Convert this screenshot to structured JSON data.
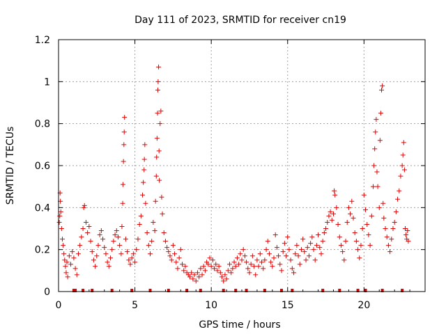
{
  "chart_data": {
    "type": "scatter",
    "title": "Day 111 of 2023, SRMTID for receiver cn19",
    "xlabel": "GPS time / hours",
    "ylabel": "SRMTID / TECUs",
    "xlim": [
      0,
      24
    ],
    "ylim": [
      0,
      1.2
    ],
    "grid": true,
    "marker": "+",
    "color": "#e00000",
    "x_ticks": [
      0,
      5,
      10,
      15,
      20
    ],
    "x_tick_labels": [
      "0",
      "5",
      "10",
      "15",
      "20"
    ],
    "y_ticks": [
      0,
      0.2,
      0.4,
      0.6,
      0.8,
      1.0,
      1.2
    ],
    "y_tick_labels": [
      "0",
      "0.2",
      "0.4",
      "0.6",
      "0.8",
      "1",
      "1.2"
    ],
    "series": [
      {
        "name": "SRMTID",
        "points": [
          [
            0.05,
            0.33
          ],
          [
            0.08,
            0.36
          ],
          [
            0.1,
            0.47
          ],
          [
            0.12,
            0.43
          ],
          [
            0.15,
            0.38
          ],
          [
            0.2,
            0.3
          ],
          [
            0.25,
            0.25
          ],
          [
            0.3,
            0.22
          ],
          [
            0.35,
            0.18
          ],
          [
            0.4,
            0.15
          ],
          [
            0.45,
            0.12
          ],
          [
            0.5,
            0.09
          ],
          [
            0.55,
            0.14
          ],
          [
            0.6,
            0.07
          ],
          [
            0.7,
            0.17
          ],
          [
            0.8,
            0.13
          ],
          [
            0.9,
            0.19
          ],
          [
            1.0,
            0.16
          ],
          [
            1.1,
            0.11
          ],
          [
            1.2,
            0.08
          ],
          [
            1.3,
            0.18
          ],
          [
            1.4,
            0.22
          ],
          [
            1.5,
            0.26
          ],
          [
            1.6,
            0.3
          ],
          [
            1.65,
            0.4
          ],
          [
            1.7,
            0.41
          ],
          [
            1.8,
            0.33
          ],
          [
            1.9,
            0.28
          ],
          [
            2.0,
            0.31
          ],
          [
            2.1,
            0.24
          ],
          [
            2.2,
            0.19
          ],
          [
            2.3,
            0.15
          ],
          [
            2.4,
            0.12
          ],
          [
            2.5,
            0.17
          ],
          [
            2.6,
            0.22
          ],
          [
            2.7,
            0.27
          ],
          [
            2.8,
            0.29
          ],
          [
            2.9,
            0.25
          ],
          [
            3.0,
            0.21
          ],
          [
            3.1,
            0.18
          ],
          [
            3.2,
            0.14
          ],
          [
            3.3,
            0.12
          ],
          [
            3.4,
            0.16
          ],
          [
            3.5,
            0.2
          ],
          [
            3.6,
            0.24
          ],
          [
            3.7,
            0.27
          ],
          [
            3.8,
            0.29
          ],
          [
            3.9,
            0.26
          ],
          [
            4.0,
            0.22
          ],
          [
            4.1,
            0.18
          ],
          [
            4.15,
            0.31
          ],
          [
            4.2,
            0.42
          ],
          [
            4.22,
            0.51
          ],
          [
            4.25,
            0.62
          ],
          [
            4.28,
            0.7
          ],
          [
            4.3,
            0.76
          ],
          [
            4.32,
            0.83
          ],
          [
            4.4,
            0.25
          ],
          [
            4.5,
            0.19
          ],
          [
            4.6,
            0.15
          ],
          [
            4.7,
            0.13
          ],
          [
            4.8,
            0.16
          ],
          [
            4.9,
            0.18
          ],
          [
            5.0,
            0.14
          ],
          [
            5.1,
            0.2
          ],
          [
            5.2,
            0.25
          ],
          [
            5.3,
            0.32
          ],
          [
            5.4,
            0.36
          ],
          [
            5.5,
            0.46
          ],
          [
            5.55,
            0.52
          ],
          [
            5.6,
            0.58
          ],
          [
            5.62,
            0.63
          ],
          [
            5.65,
            0.7
          ],
          [
            5.7,
            0.42
          ],
          [
            5.8,
            0.28
          ],
          [
            5.9,
            0.22
          ],
          [
            6.0,
            0.18
          ],
          [
            6.1,
            0.24
          ],
          [
            6.2,
            0.33
          ],
          [
            6.3,
            0.29
          ],
          [
            6.35,
            0.43
          ],
          [
            6.4,
            0.55
          ],
          [
            6.42,
            0.64
          ],
          [
            6.45,
            0.73
          ],
          [
            6.48,
            0.85
          ],
          [
            6.5,
            0.96
          ],
          [
            6.52,
            1.0
          ],
          [
            6.55,
            1.07
          ],
          [
            6.58,
            0.67
          ],
          [
            6.6,
            0.53
          ],
          [
            6.65,
            0.8
          ],
          [
            6.7,
            0.86
          ],
          [
            6.75,
            0.45
          ],
          [
            6.8,
            0.37
          ],
          [
            6.9,
            0.28
          ],
          [
            7.0,
            0.24
          ],
          [
            7.1,
            0.21
          ],
          [
            7.2,
            0.19
          ],
          [
            7.3,
            0.17
          ],
          [
            7.4,
            0.15
          ],
          [
            7.5,
            0.22
          ],
          [
            7.6,
            0.18
          ],
          [
            7.7,
            0.14
          ],
          [
            7.8,
            0.11
          ],
          [
            7.9,
            0.16
          ],
          [
            8.0,
            0.2
          ],
          [
            8.1,
            0.13
          ],
          [
            8.2,
            0.1
          ],
          [
            8.3,
            0.12
          ],
          [
            8.4,
            0.09
          ],
          [
            8.5,
            0.08
          ],
          [
            8.6,
            0.07
          ],
          [
            8.7,
            0.09
          ],
          [
            8.8,
            0.06
          ],
          [
            8.9,
            0.08
          ],
          [
            9.0,
            0.05
          ],
          [
            9.1,
            0.09
          ],
          [
            9.2,
            0.07
          ],
          [
            9.3,
            0.11
          ],
          [
            9.4,
            0.08
          ],
          [
            9.5,
            0.12
          ],
          [
            9.6,
            0.1
          ],
          [
            9.7,
            0.14
          ],
          [
            9.8,
            0.13
          ],
          [
            9.9,
            0.16
          ],
          [
            10.0,
            0.12
          ],
          [
            10.1,
            0.15
          ],
          [
            10.2,
            0.11
          ],
          [
            10.3,
            0.13
          ],
          [
            10.4,
            0.1
          ],
          [
            10.5,
            0.12
          ],
          [
            10.6,
            0.09
          ],
          [
            10.7,
            0.07
          ],
          [
            10.8,
            0.05
          ],
          [
            10.9,
            0.08
          ],
          [
            11.0,
            0.06
          ],
          [
            11.1,
            0.1
          ],
          [
            11.2,
            0.13
          ],
          [
            11.3,
            0.09
          ],
          [
            11.4,
            0.11
          ],
          [
            11.5,
            0.14
          ],
          [
            11.6,
            0.12
          ],
          [
            11.7,
            0.16
          ],
          [
            11.8,
            0.13
          ],
          [
            11.9,
            0.18
          ],
          [
            12.0,
            0.15
          ],
          [
            12.1,
            0.2
          ],
          [
            12.2,
            0.17
          ],
          [
            12.3,
            0.14
          ],
          [
            12.4,
            0.11
          ],
          [
            12.5,
            0.09
          ],
          [
            12.6,
            0.13
          ],
          [
            12.7,
            0.17
          ],
          [
            12.8,
            0.12
          ],
          [
            12.9,
            0.08
          ],
          [
            13.0,
            0.15
          ],
          [
            13.1,
            0.12
          ],
          [
            13.2,
            0.18
          ],
          [
            13.3,
            0.14
          ],
          [
            13.4,
            0.11
          ],
          [
            13.5,
            0.15
          ],
          [
            13.6,
            0.2
          ],
          [
            13.7,
            0.24
          ],
          [
            13.8,
            0.18
          ],
          [
            13.9,
            0.14
          ],
          [
            14.0,
            0.12
          ],
          [
            14.1,
            0.16
          ],
          [
            14.2,
            0.27
          ],
          [
            14.3,
            0.21
          ],
          [
            14.4,
            0.17
          ],
          [
            14.5,
            0.13
          ],
          [
            14.6,
            0.1
          ],
          [
            14.7,
            0.19
          ],
          [
            14.8,
            0.23
          ],
          [
            14.9,
            0.17
          ],
          [
            15.0,
            0.26
          ],
          [
            15.1,
            0.2
          ],
          [
            15.2,
            0.15
          ],
          [
            15.3,
            0.11
          ],
          [
            15.4,
            0.09
          ],
          [
            15.5,
            0.18
          ],
          [
            15.6,
            0.22
          ],
          [
            15.7,
            0.17
          ],
          [
            15.8,
            0.13
          ],
          [
            15.9,
            0.2
          ],
          [
            16.0,
            0.25
          ],
          [
            16.1,
            0.19
          ],
          [
            16.2,
            0.15
          ],
          [
            16.3,
            0.21
          ],
          [
            16.4,
            0.17
          ],
          [
            16.5,
            0.23
          ],
          [
            16.6,
            0.26
          ],
          [
            16.7,
            0.2
          ],
          [
            16.8,
            0.15
          ],
          [
            16.9,
            0.22
          ],
          [
            17.0,
            0.27
          ],
          [
            17.1,
            0.21
          ],
          [
            17.2,
            0.18
          ],
          [
            17.3,
            0.24
          ],
          [
            17.4,
            0.28
          ],
          [
            17.5,
            0.3
          ],
          [
            17.6,
            0.33
          ],
          [
            17.7,
            0.36
          ],
          [
            17.8,
            0.38
          ],
          [
            17.9,
            0.34
          ],
          [
            18.0,
            0.37
          ],
          [
            18.05,
            0.48
          ],
          [
            18.1,
            0.46
          ],
          [
            18.2,
            0.4
          ],
          [
            18.3,
            0.32
          ],
          [
            18.4,
            0.26
          ],
          [
            18.5,
            0.22
          ],
          [
            18.6,
            0.19
          ],
          [
            18.7,
            0.15
          ],
          [
            18.8,
            0.24
          ],
          [
            18.9,
            0.33
          ],
          [
            19.0,
            0.4
          ],
          [
            19.1,
            0.37
          ],
          [
            19.2,
            0.43
          ],
          [
            19.3,
            0.35
          ],
          [
            19.4,
            0.28
          ],
          [
            19.5,
            0.24
          ],
          [
            19.6,
            0.2
          ],
          [
            19.7,
            0.16
          ],
          [
            19.8,
            0.22
          ],
          [
            19.9,
            0.3
          ],
          [
            20.0,
            0.46
          ],
          [
            20.1,
            0.39
          ],
          [
            20.2,
            0.32
          ],
          [
            20.3,
            0.27
          ],
          [
            20.4,
            0.22
          ],
          [
            20.5,
            0.36
          ],
          [
            20.6,
            0.5
          ],
          [
            20.65,
            0.6
          ],
          [
            20.7,
            0.68
          ],
          [
            20.75,
            0.76
          ],
          [
            20.8,
            0.82
          ],
          [
            20.85,
            0.57
          ],
          [
            20.9,
            0.5
          ],
          [
            21.0,
            0.4
          ],
          [
            21.05,
            0.72
          ],
          [
            21.1,
            0.85
          ],
          [
            21.15,
            0.96
          ],
          [
            21.2,
            0.98
          ],
          [
            21.25,
            0.42
          ],
          [
            21.3,
            0.35
          ],
          [
            21.4,
            0.3
          ],
          [
            21.5,
            0.26
          ],
          [
            21.6,
            0.22
          ],
          [
            21.7,
            0.19
          ],
          [
            21.8,
            0.25
          ],
          [
            21.9,
            0.3
          ],
          [
            22.0,
            0.33
          ],
          [
            22.1,
            0.38
          ],
          [
            22.2,
            0.44
          ],
          [
            22.3,
            0.48
          ],
          [
            22.4,
            0.55
          ],
          [
            22.5,
            0.6
          ],
          [
            22.55,
            0.65
          ],
          [
            22.6,
            0.71
          ],
          [
            22.65,
            0.58
          ],
          [
            22.7,
            0.3
          ],
          [
            22.75,
            0.27
          ],
          [
            22.8,
            0.25
          ],
          [
            22.85,
            0.29
          ],
          [
            22.9,
            0.24
          ]
        ]
      }
    ],
    "gaps_at_zero": [
      1.0,
      1.1,
      1.6,
      2.2,
      3.5,
      4.8,
      6.0,
      7.2,
      8.4,
      9.3,
      10.8,
      11.6,
      12.3,
      13.5,
      14.6,
      15.3,
      17.3,
      18.4,
      19.6,
      20.1,
      21.2,
      22.5
    ]
  }
}
